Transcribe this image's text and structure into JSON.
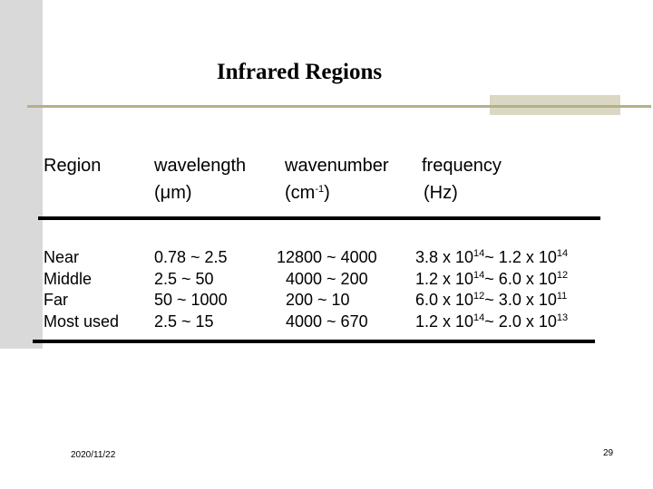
{
  "title": "Infrared Regions",
  "header": {
    "col1": "Region",
    "col2_line1": "wavelength",
    "col2_line2_unit": "m",
    "col2_line2_mu": "μ",
    "col3_line1": "wavenumber",
    "col3_line2_base": "(cm",
    "col3_line2_exp": "-1",
    "col3_line2_end": ")",
    "col4_line1": "frequency",
    "col4_line2": "(Hz)"
  },
  "rows": [
    {
      "region": "Near",
      "wavelength": "0.78 ~ 2.5",
      "wavenumber": "12800 ~ 4000",
      "freq": {
        "a": "3.8 x 10",
        "ae": "14",
        "mid": "~ 1.2 x 10",
        "be": "14"
      }
    },
    {
      "region": "Middle",
      "wavelength": "2.5 ~ 50",
      "wavenumber": "4000 ~ 200",
      "freq": {
        "a": "1.2 x 10",
        "ae": "14",
        "mid": "~ 6.0 x 10",
        "be": "12"
      }
    },
    {
      "region": "Far",
      "wavelength": "50 ~ 1000",
      "wavenumber": "200 ~ 10",
      "freq": {
        "a": "6.0 x 10",
        "ae": "12",
        "mid": "~ 3.0 x 10",
        "be": "11"
      }
    },
    {
      "region": "Most used",
      "wavelength": "2.5 ~ 15",
      "wavenumber": "4000 ~ 670",
      "freq": {
        "a": "1.2 x 10",
        "ae": "14",
        "mid": "~ 2.0 x 10",
        "be": "13"
      }
    }
  ],
  "footer": {
    "date": "2020/11/22",
    "page_number": "29"
  },
  "colors": {
    "sidebar": "#d9d9d9",
    "accent_line": "#b5b08a",
    "accent_block": "#dad7c2"
  }
}
